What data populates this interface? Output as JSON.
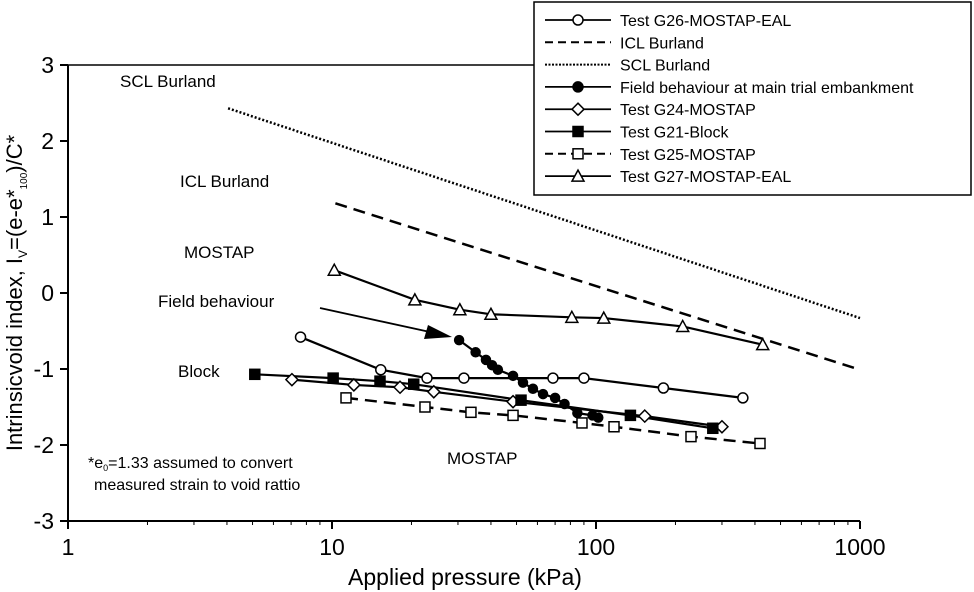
{
  "chart_data": {
    "type": "line",
    "xlabel": "Applied pressure (kPa)",
    "ylabel": "Intrinsicvoid index, I",
    "ylabel_sub": "V",
    "ylabel_rest": "=(e-e*",
    "ylabel_sub2": "100",
    "ylabel_end": ")/C*",
    "xscale": "log",
    "xlim": [
      1,
      1000
    ],
    "ylim": [
      -3,
      3
    ],
    "xticks": [
      "1",
      "10",
      "100",
      "1000"
    ],
    "yticks": [
      "3",
      "2",
      "1",
      "0",
      "-1",
      "-2",
      "-3"
    ],
    "grid": false,
    "legend_position": "top-right",
    "series": [
      {
        "name": "Test G26-MOSTAP-EAL",
        "marker": "open-circle",
        "line": "solid",
        "x": [
          7.6,
          15.3,
          22.9,
          31.6,
          68.7,
          90,
          180,
          360
        ],
        "y": [
          -0.58,
          -1.01,
          -1.12,
          -1.12,
          -1.12,
          -1.12,
          -1.25,
          -1.38
        ]
      },
      {
        "name": "ICL Burland",
        "marker": "none",
        "line": "dashed",
        "x": [
          10.3,
          1000
        ],
        "y": [
          1.18,
          -1.01
        ]
      },
      {
        "name": "SCL Burland",
        "marker": "none",
        "line": "dotted",
        "x": [
          4.04,
          1000
        ],
        "y": [
          2.43,
          -0.33
        ]
      },
      {
        "name": "Field behaviour at main trial embankment",
        "marker": "filled-circle",
        "line": "solid",
        "x": [
          30.3,
          35,
          38.3,
          40.4,
          42.5,
          48.5,
          52.9,
          57.7,
          63,
          70,
          76,
          85,
          97,
          102
        ],
        "y": [
          -0.62,
          -0.78,
          -0.88,
          -0.95,
          -1.01,
          -1.09,
          -1.18,
          -1.26,
          -1.33,
          -1.38,
          -1.46,
          -1.58,
          -1.61,
          -1.64
        ]
      },
      {
        "name": "Test G24-MOSTAP",
        "marker": "open-diamond",
        "line": "solid",
        "x": [
          7.05,
          12.1,
          18.1,
          24.3,
          48.5,
          153,
          300
        ],
        "y": [
          -1.14,
          -1.21,
          -1.24,
          -1.3,
          -1.43,
          -1.62,
          -1.76
        ]
      },
      {
        "name": "Test G21-Block",
        "marker": "filled-square",
        "line": "solid",
        "x": [
          5.1,
          10.1,
          15.2,
          20.4,
          52,
          135,
          277
        ],
        "y": [
          -1.07,
          -1.12,
          -1.16,
          -1.2,
          -1.41,
          -1.61,
          -1.78
        ]
      },
      {
        "name": "Test G25-MOSTAP",
        "marker": "open-square",
        "line": "dashed",
        "x": [
          11.3,
          22.5,
          33.6,
          48.5,
          88.5,
          117,
          229,
          418
        ],
        "y": [
          -1.38,
          -1.5,
          -1.57,
          -1.61,
          -1.71,
          -1.76,
          -1.89,
          -1.98
        ]
      },
      {
        "name": "Test G27-MOSTAP-EAL",
        "marker": "open-triangle",
        "line": "solid",
        "x": [
          10.2,
          20.6,
          30.5,
          40,
          81,
          107,
          213,
          428
        ],
        "y": [
          0.3,
          -0.09,
          -0.22,
          -0.28,
          -0.32,
          -0.33,
          -0.44,
          -0.68
        ]
      }
    ],
    "annotations": [
      {
        "text": "SCL Burland"
      },
      {
        "text": "ICL Burland"
      },
      {
        "text": "MOSTAP"
      },
      {
        "text": "Field behaviour"
      },
      {
        "text": "Block"
      },
      {
        "text": "MOSTAP"
      }
    ],
    "note": {
      "prefix": "*e",
      "sub": "0",
      "line1_rest": "=1.33 assumed to convert",
      "line2": "measured strain to void rattio"
    }
  }
}
